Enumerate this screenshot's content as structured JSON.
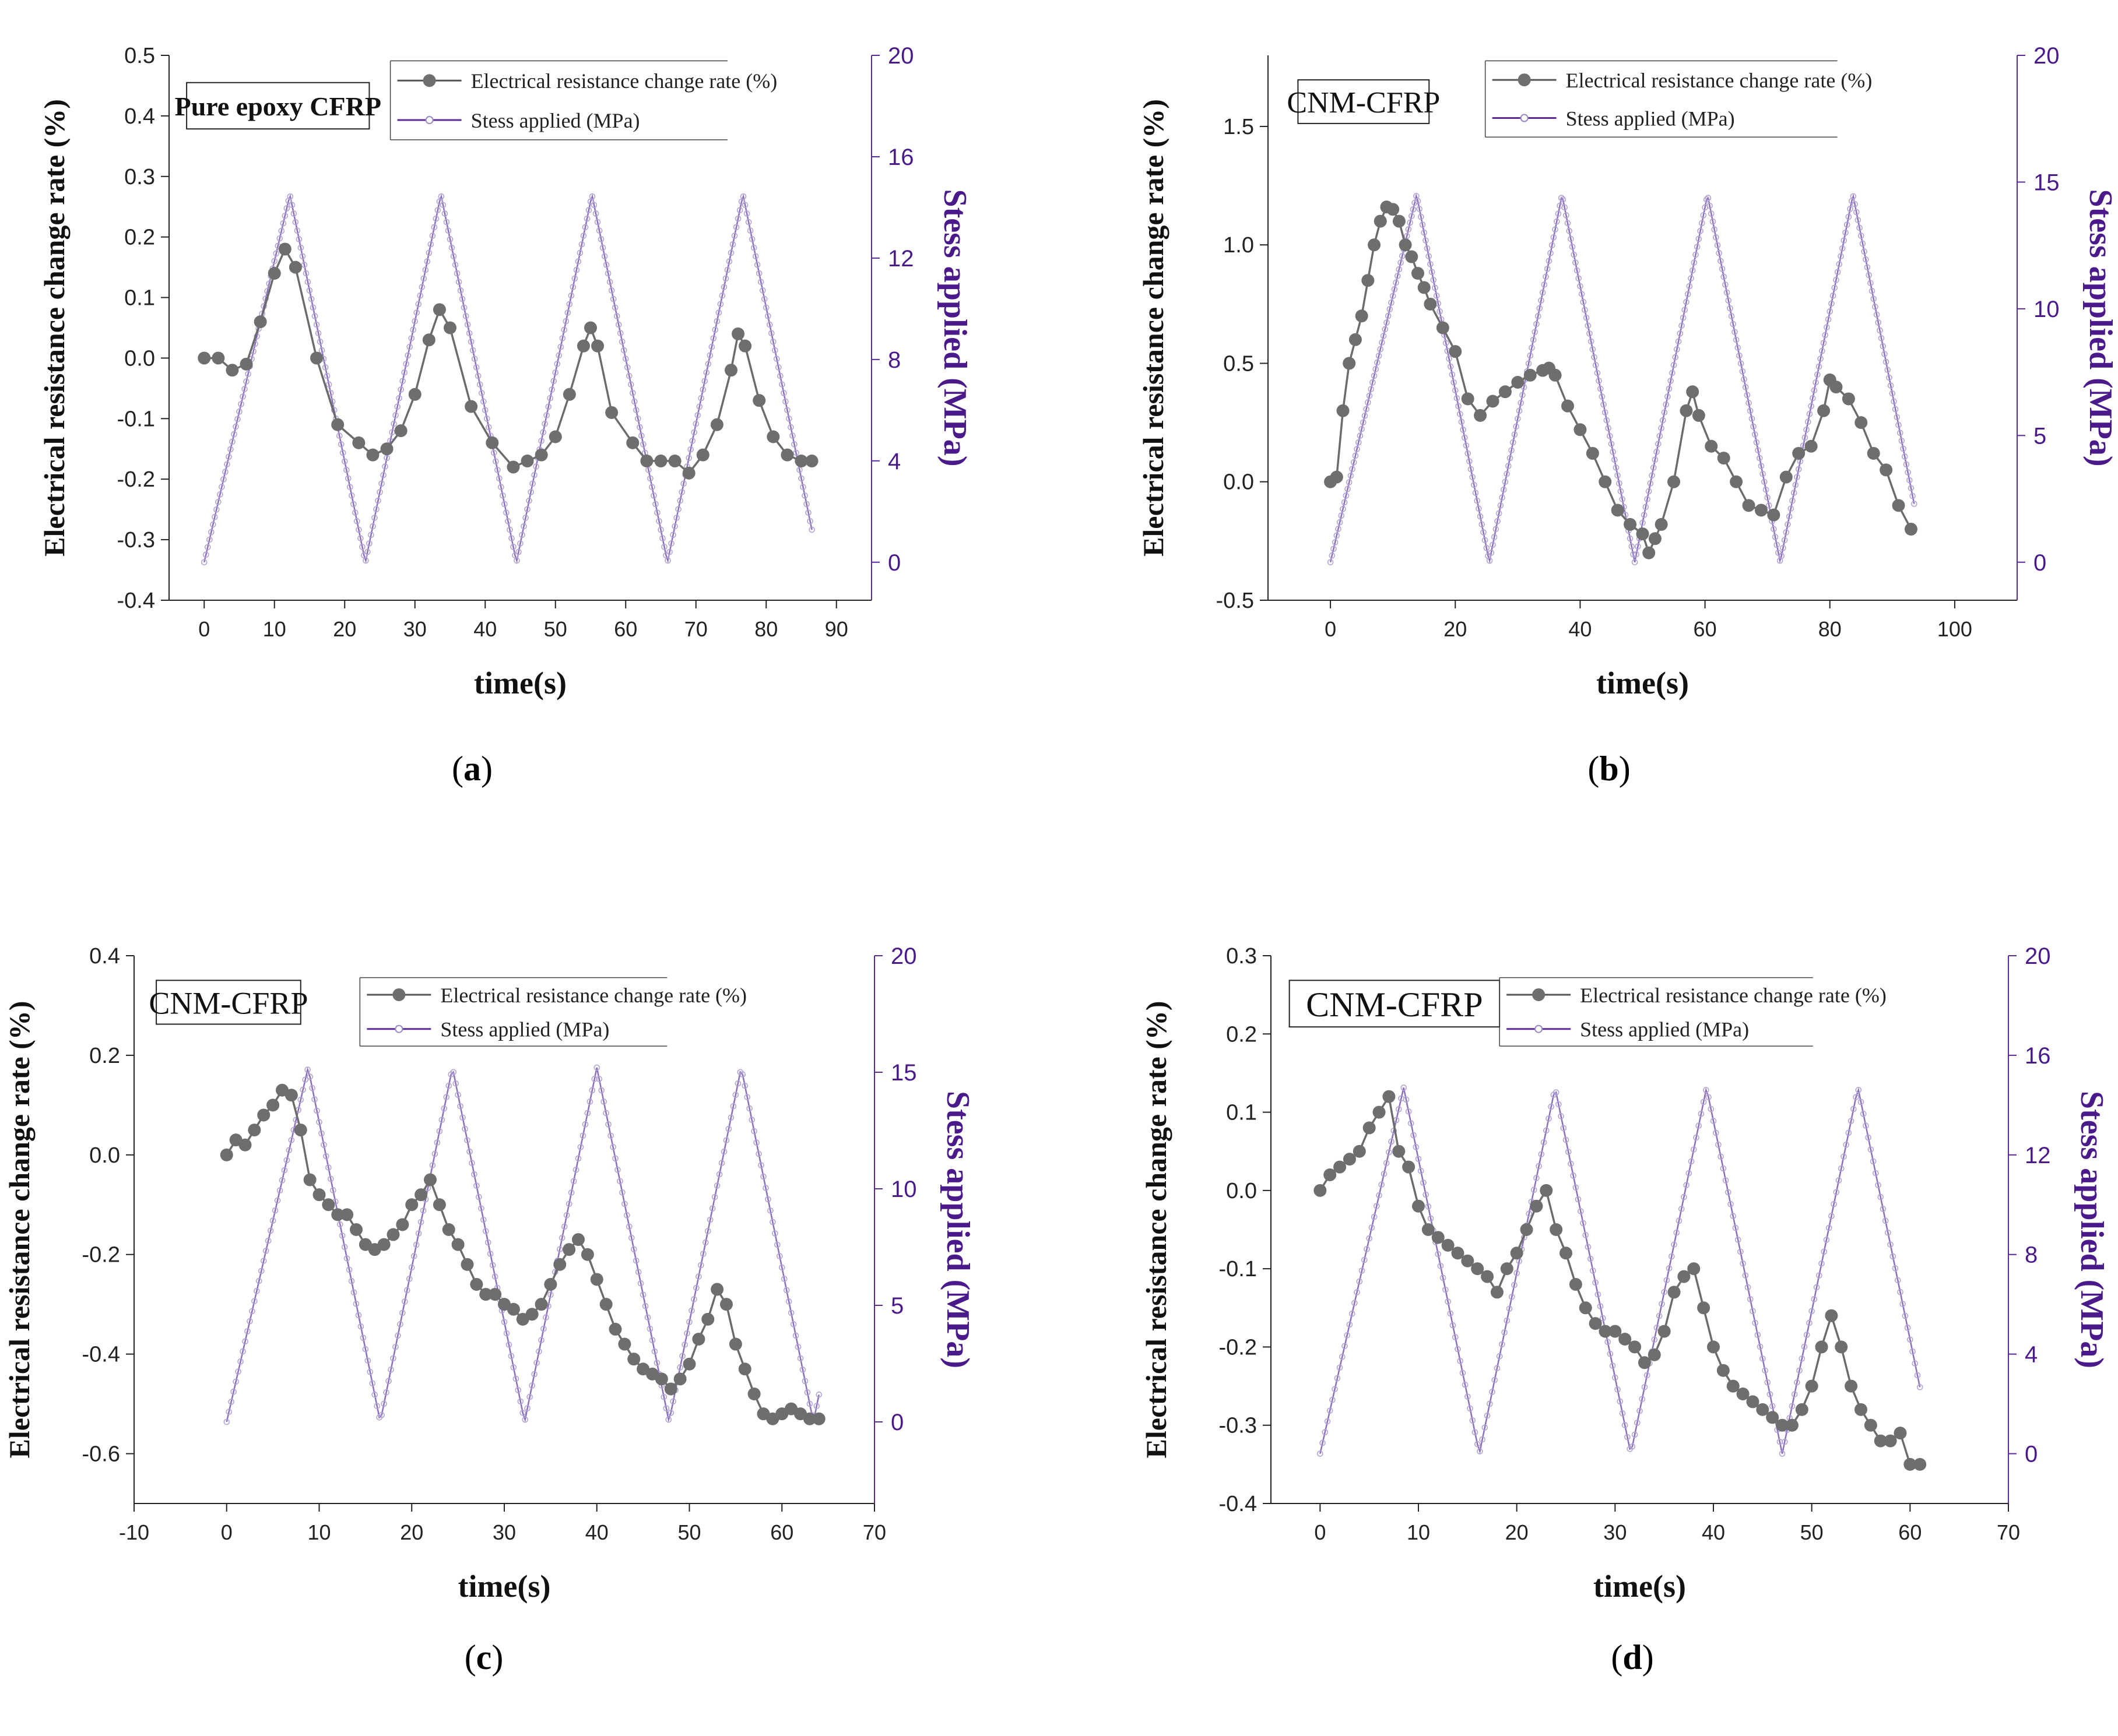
{
  "chart_data": [
    {
      "type": "line",
      "panel": "a",
      "caption_label": "a",
      "title_box": "Pure epoxy CFRP",
      "xlabel": "time(s)",
      "ylabel_left": "Electrical resistance change rate (%)",
      "ylabel_right": "Stess applied (MPa)",
      "xlim": [
        -5,
        95
      ],
      "ylim_left": [
        -0.4,
        0.5
      ],
      "ylim_right": [
        -1.5,
        20
      ],
      "xticks": [
        0,
        10,
        20,
        30,
        40,
        50,
        60,
        70,
        80,
        90
      ],
      "yticks_left": [
        -0.4,
        -0.3,
        -0.2,
        -0.1,
        0.0,
        0.1,
        0.2,
        0.3,
        0.4,
        0.5
      ],
      "yticks_left_labels": [
        "-0.4",
        "-0.3",
        "-0.2",
        "-0.1",
        "0.0",
        "0.1",
        "0.2",
        "0.3",
        "0.4",
        "0.5"
      ],
      "yticks_right": [
        0,
        4,
        8,
        12,
        16,
        20
      ],
      "legend": [
        "Electrical resistance change rate (%)",
        "Stess applied (MPa)"
      ],
      "series": [
        {
          "name": "Electrical resistance change rate (%)",
          "axis": "left",
          "x": [
            0,
            2,
            4,
            6,
            8,
            10,
            11.5,
            13,
            16,
            19,
            22,
            24,
            26,
            28,
            30,
            32,
            33.5,
            35,
            38,
            41,
            44,
            46,
            48,
            50,
            52,
            54,
            55,
            56,
            58,
            61,
            63,
            65,
            67,
            69,
            71,
            73,
            75,
            76,
            77,
            79,
            81,
            83,
            85,
            86.5
          ],
          "y": [
            0.0,
            0.0,
            -0.02,
            -0.01,
            0.06,
            0.14,
            0.18,
            0.15,
            0.0,
            -0.11,
            -0.14,
            -0.16,
            -0.15,
            -0.12,
            -0.06,
            0.03,
            0.08,
            0.05,
            -0.08,
            -0.14,
            -0.18,
            -0.17,
            -0.16,
            -0.13,
            -0.06,
            0.02,
            0.05,
            0.02,
            -0.09,
            -0.14,
            -0.17,
            -0.17,
            -0.17,
            -0.19,
            -0.16,
            -0.11,
            -0.02,
            0.04,
            0.02,
            -0.07,
            -0.13,
            -0.16,
            -0.17,
            -0.17
          ]
        },
        {
          "name": "Stess applied (MPa)",
          "axis": "right",
          "style": "triangle",
          "period": 21.5,
          "peak_time": 12.2,
          "cycles": 4,
          "xmax": 86.5,
          "min": 0,
          "max": 14.5
        }
      ]
    },
    {
      "type": "line",
      "panel": "b",
      "caption_label": "b",
      "title_box": "CNM-CFRP",
      "xlabel": "time(s)",
      "ylabel_left": "Electrical resistance change rate (%)",
      "ylabel_right": "Stess applied (MPa)",
      "xlim": [
        -10,
        110
      ],
      "ylim_left": [
        -0.5,
        1.8
      ],
      "ylim_right": [
        -1.5,
        20
      ],
      "xticks": [
        0,
        20,
        40,
        60,
        80,
        100
      ],
      "yticks_left": [
        -0.5,
        0.0,
        0.5,
        1.0,
        1.5
      ],
      "yticks_left_labels": [
        "-0.5",
        "0.0",
        "0.5",
        "1.0",
        "1.5"
      ],
      "yticks_right": [
        0,
        5,
        10,
        15,
        20
      ],
      "legend": [
        "Electrical resistance change rate (%)",
        "Stess applied (MPa)"
      ],
      "series": [
        {
          "name": "Electrical resistance change rate (%)",
          "axis": "left",
          "x": [
            0,
            1,
            2,
            3,
            4,
            5,
            6,
            7,
            8,
            9,
            10,
            11,
            12,
            13,
            14,
            15,
            16,
            18,
            20,
            22,
            24,
            26,
            28,
            30,
            32,
            34,
            35,
            36,
            38,
            40,
            42,
            44,
            46,
            48,
            50,
            51,
            52,
            53,
            55,
            57,
            58,
            59,
            61,
            63,
            65,
            67,
            69,
            71,
            73,
            75,
            77,
            79,
            80,
            81,
            83,
            85,
            87,
            89,
            91,
            93
          ],
          "y": [
            0.0,
            0.02,
            0.3,
            0.5,
            0.6,
            0.7,
            0.85,
            1.0,
            1.1,
            1.16,
            1.15,
            1.1,
            1.0,
            0.95,
            0.88,
            0.82,
            0.75,
            0.65,
            0.55,
            0.35,
            0.28,
            0.34,
            0.38,
            0.42,
            0.45,
            0.47,
            0.48,
            0.45,
            0.32,
            0.22,
            0.12,
            0.0,
            -0.12,
            -0.18,
            -0.22,
            -0.3,
            -0.24,
            -0.18,
            0.0,
            0.3,
            0.38,
            0.28,
            0.15,
            0.1,
            0.0,
            -0.1,
            -0.12,
            -0.14,
            0.02,
            0.12,
            0.15,
            0.3,
            0.43,
            0.4,
            0.35,
            0.25,
            0.12,
            0.05,
            -0.1,
            -0.2
          ]
        },
        {
          "name": "Stess applied (MPa)",
          "axis": "right",
          "style": "triangle",
          "period": 23.3,
          "peak_time": 13.8,
          "cycles": 4,
          "xmax": 93.5,
          "min": 0,
          "max": 14.5
        }
      ]
    },
    {
      "type": "line",
      "panel": "c",
      "caption_label": "c",
      "title_box": "CNM-CFRP",
      "xlabel": "time(s)",
      "ylabel_left": "Electrical resistance change rate (%)",
      "ylabel_right": "Stess applied (MPa)",
      "xlim": [
        -10,
        70
      ],
      "ylim_left": [
        -0.7,
        0.4
      ],
      "ylim_right": [
        -3.5,
        20
      ],
      "xticks": [
        -10,
        0,
        10,
        20,
        30,
        40,
        50,
        60,
        70
      ],
      "yticks_left": [
        -0.6,
        -0.4,
        -0.2,
        0.0,
        0.2,
        0.4
      ],
      "yticks_left_labels": [
        "-0.6",
        "-0.4",
        "-0.2",
        "0.0",
        "0.2",
        "0.4"
      ],
      "yticks_right": [
        0,
        5,
        10,
        15,
        20
      ],
      "legend": [
        "Electrical resistance change rate (%)",
        "Stess applied (MPa)"
      ],
      "series": [
        {
          "name": "Electrical resistance change rate (%)",
          "axis": "left",
          "x": [
            0,
            1,
            2,
            3,
            4,
            5,
            6,
            7,
            8,
            9,
            10,
            11,
            12,
            13,
            14,
            15,
            16,
            17,
            18,
            19,
            20,
            21,
            22,
            23,
            24,
            25,
            26,
            27,
            28,
            29,
            30,
            31,
            32,
            33,
            34,
            35,
            36,
            37,
            38,
            39,
            40,
            41,
            42,
            43,
            44,
            45,
            46,
            47,
            48,
            49,
            50,
            51,
            52,
            53,
            54,
            55,
            56,
            57,
            58,
            59,
            60,
            61,
            62,
            63,
            64
          ],
          "y": [
            0.0,
            0.03,
            0.02,
            0.05,
            0.08,
            0.1,
            0.13,
            0.12,
            0.05,
            -0.05,
            -0.08,
            -0.1,
            -0.12,
            -0.12,
            -0.15,
            -0.18,
            -0.19,
            -0.18,
            -0.16,
            -0.14,
            -0.1,
            -0.08,
            -0.05,
            -0.1,
            -0.15,
            -0.18,
            -0.22,
            -0.26,
            -0.28,
            -0.28,
            -0.3,
            -0.31,
            -0.33,
            -0.32,
            -0.3,
            -0.26,
            -0.22,
            -0.19,
            -0.17,
            -0.2,
            -0.25,
            -0.3,
            -0.35,
            -0.38,
            -0.41,
            -0.43,
            -0.44,
            -0.45,
            -0.47,
            -0.45,
            -0.42,
            -0.37,
            -0.33,
            -0.27,
            -0.3,
            -0.38,
            -0.43,
            -0.48,
            -0.52,
            -0.53,
            -0.52,
            -0.51,
            -0.52,
            -0.53,
            -0.53
          ]
        },
        {
          "name": "Stess applied (MPa)",
          "axis": "right",
          "style": "triangle",
          "period": 15.6,
          "peak_time": 8.8,
          "cycles": 4,
          "xmax": 64,
          "min": 0,
          "max": 15.2
        }
      ]
    },
    {
      "type": "line",
      "panel": "d",
      "caption_label": "d",
      "title_box": "CNM-CFRP",
      "xlabel": "time(s)",
      "ylabel_left": "Electrical resistance change rate (%)",
      "ylabel_right": "Stess applied (MPa)",
      "xlim": [
        -5,
        70
      ],
      "ylim_left": [
        -0.4,
        0.3
      ],
      "ylim_right": [
        -2,
        20
      ],
      "xticks": [
        0,
        10,
        20,
        30,
        40,
        50,
        60,
        70
      ],
      "yticks_left": [
        -0.4,
        -0.3,
        -0.2,
        -0.1,
        0.0,
        0.1,
        0.2,
        0.3
      ],
      "yticks_left_labels": [
        "-0.4",
        "-0.3",
        "-0.2",
        "-0.1",
        "0.0",
        "0.1",
        "0.2",
        "0.3"
      ],
      "yticks_right": [
        0,
        4,
        8,
        12,
        16,
        20
      ],
      "legend": [
        "Electrical resistance change rate (%)",
        "Stess applied (MPa)"
      ],
      "series": [
        {
          "name": "Electrical resistance change rate (%)",
          "axis": "left",
          "x": [
            0,
            1,
            2,
            3,
            4,
            5,
            6,
            7,
            8,
            9,
            10,
            11,
            12,
            13,
            14,
            15,
            16,
            17,
            18,
            19,
            20,
            21,
            22,
            23,
            24,
            25,
            26,
            27,
            28,
            29,
            30,
            31,
            32,
            33,
            34,
            35,
            36,
            37,
            38,
            39,
            40,
            41,
            42,
            43,
            44,
            45,
            46,
            47,
            48,
            49,
            50,
            51,
            52,
            53,
            54,
            55,
            56,
            57,
            58,
            59,
            60,
            61
          ],
          "y": [
            0.0,
            0.02,
            0.03,
            0.04,
            0.05,
            0.08,
            0.1,
            0.12,
            0.05,
            0.03,
            -0.02,
            -0.05,
            -0.06,
            -0.07,
            -0.08,
            -0.09,
            -0.1,
            -0.11,
            -0.13,
            -0.1,
            -0.08,
            -0.05,
            -0.02,
            0.0,
            -0.05,
            -0.08,
            -0.12,
            -0.15,
            -0.17,
            -0.18,
            -0.18,
            -0.19,
            -0.2,
            -0.22,
            -0.21,
            -0.18,
            -0.13,
            -0.11,
            -0.1,
            -0.15,
            -0.2,
            -0.23,
            -0.25,
            -0.26,
            -0.27,
            -0.28,
            -0.29,
            -0.3,
            -0.3,
            -0.28,
            -0.25,
            -0.2,
            -0.16,
            -0.2,
            -0.25,
            -0.28,
            -0.3,
            -0.32,
            -0.32,
            -0.31,
            -0.35,
            -0.35
          ]
        },
        {
          "name": "Stess applied (MPa)",
          "axis": "right",
          "style": "triangle",
          "period": 15.4,
          "peak_time": 8.5,
          "cycles": 4,
          "xmax": 61,
          "min": 0,
          "max": 14.7
        }
      ]
    }
  ]
}
